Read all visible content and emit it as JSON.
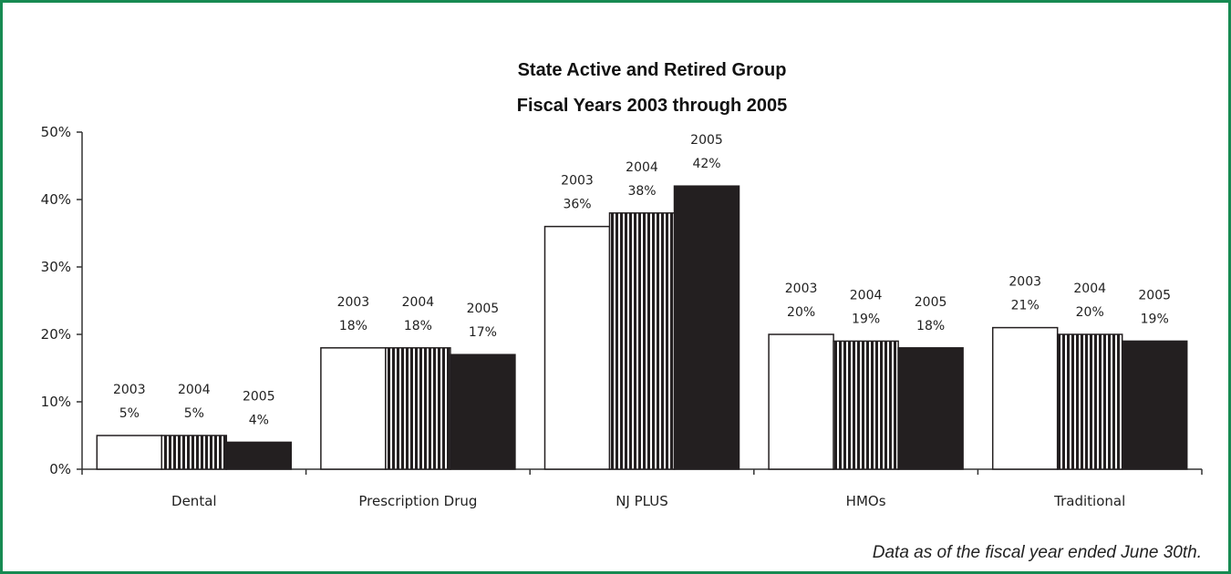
{
  "chart_data": {
    "type": "bar",
    "title": "State Active and Retired Group",
    "subtitle": "Fiscal Years 2003 through 2005",
    "categories": [
      "Dental",
      "Prescription Drug",
      "NJ PLUS",
      "HMOs",
      "Traditional"
    ],
    "series": [
      {
        "name": "2003",
        "values": [
          5,
          18,
          36,
          20,
          21
        ],
        "value_labels": [
          "5%",
          "18%",
          "36%",
          "20%",
          "21%"
        ],
        "style": "solid-white",
        "color": "#ffffff"
      },
      {
        "name": "2004",
        "values": [
          5,
          18,
          38,
          19,
          20
        ],
        "value_labels": [
          "5%",
          "18%",
          "38%",
          "19%",
          "20%"
        ],
        "style": "vertical-stripes",
        "color": "#231f20"
      },
      {
        "name": "2005",
        "values": [
          4,
          17,
          42,
          18,
          19
        ],
        "value_labels": [
          "4%",
          "17%",
          "42%",
          "18%",
          "19%"
        ],
        "style": "solid-black",
        "color": "#231f20"
      }
    ],
    "ylim": [
      0,
      50
    ],
    "yticks": [
      0,
      10,
      20,
      30,
      40,
      50
    ],
    "ytick_labels": [
      "0%",
      "10%",
      "20%",
      "30%",
      "40%",
      "50%"
    ],
    "grid": false,
    "legend": "none",
    "xlabel": "",
    "ylabel": ""
  },
  "footnote": "Data as of the fiscal year ended June 30th.",
  "colors": {
    "border": "#178a52",
    "bar_dark": "#231f20",
    "axis": "#333333"
  }
}
